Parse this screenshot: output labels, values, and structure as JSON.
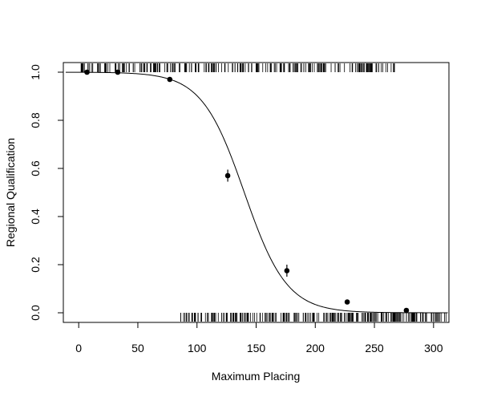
{
  "chart_data": {
    "type": "scatter",
    "title": "",
    "xlabel": "Maximum Placing",
    "ylabel": "Regional Qualification",
    "xlim": [
      -13,
      313
    ],
    "ylim": [
      -0.04,
      1.04
    ],
    "x_ticks": [
      0,
      50,
      100,
      150,
      200,
      250,
      300
    ],
    "y_ticks": [
      0.0,
      0.2,
      0.4,
      0.6,
      0.8,
      1.0
    ],
    "x_tick_labels": [
      "0",
      "50",
      "100",
      "150",
      "200",
      "250",
      "300"
    ],
    "y_tick_labels": [
      "0.0",
      "0.2",
      "0.4",
      "0.6",
      "0.8",
      "1.0"
    ],
    "grid": false,
    "series": [
      {
        "kind": "binned points with error bars",
        "x": [
          7,
          33,
          77,
          126,
          176,
          227,
          277
        ],
        "y": [
          1.0,
          1.0,
          0.97,
          0.57,
          0.175,
          0.045,
          0.01
        ],
        "err": [
          0.0,
          0.0,
          0.01,
          0.025,
          0.025,
          0.01,
          0.005
        ]
      },
      {
        "kind": "logistic fit curve",
        "midpoint": 140,
        "scale": 18
      }
    ],
    "rug": {
      "top_y": 1,
      "top_x_range": [
        2,
        268
      ],
      "bottom_y": 0,
      "bottom_x_range": [
        86,
        312
      ]
    },
    "colors": {
      "ink": "#000000",
      "background": "#ffffff"
    }
  }
}
